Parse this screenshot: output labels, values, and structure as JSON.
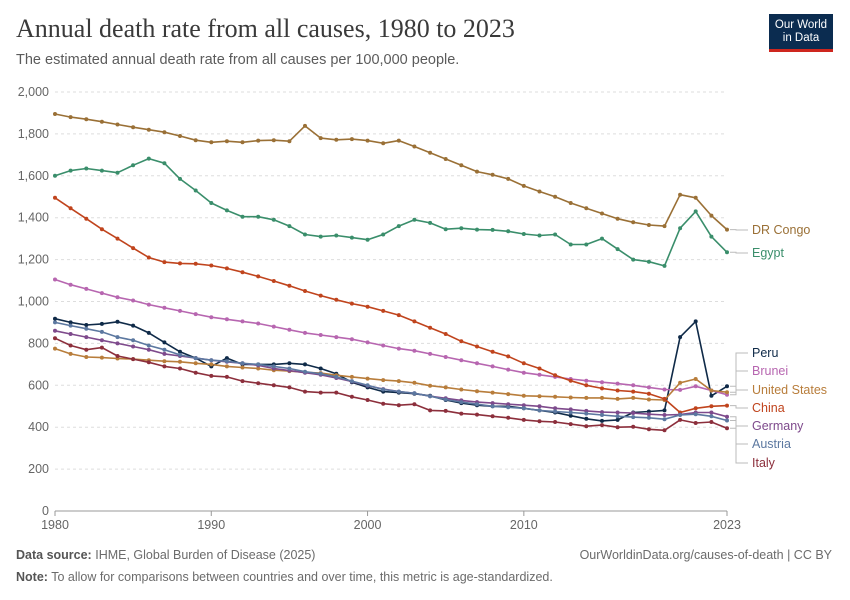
{
  "header": {
    "title": "Annual death rate from all causes, 1980 to 2023",
    "subtitle": "The estimated annual death rate from all causes per 100,000 people.",
    "logo_line1": "Our World",
    "logo_line2": "in Data"
  },
  "footer": {
    "source_label": "Data source:",
    "source_text": "IHME, Global Burden of Disease (2025)",
    "credit": "OurWorldinData.org/causes-of-death | CC BY",
    "note_label": "Note:",
    "note_text": "To allow for comparisons between countries and over time, this metric is age-standardized."
  },
  "chart_data": {
    "type": "line",
    "title": "Annual death rate from all causes, 1980 to 2023",
    "xlim": [
      1980,
      2023
    ],
    "ylim": [
      0,
      2000
    ],
    "x_ticks": [
      1980,
      1990,
      2000,
      2010,
      2023
    ],
    "x_tick_labels": [
      "1980",
      "1990",
      "2000",
      "2010",
      "2023"
    ],
    "y_ticks": [
      0,
      200,
      400,
      600,
      800,
      1000,
      1200,
      1400,
      1600,
      1800,
      2000
    ],
    "y_tick_labels": [
      "0",
      "200",
      "400",
      "600",
      "800",
      "1,000",
      "1,200",
      "1,400",
      "1,600",
      "1,800",
      "2,000"
    ],
    "grid": "horizontal dashed",
    "legend": "right, inline labels",
    "x": [
      1980,
      1981,
      1982,
      1983,
      1984,
      1985,
      1986,
      1987,
      1988,
      1989,
      1990,
      1991,
      1992,
      1993,
      1994,
      1995,
      1996,
      1997,
      1998,
      1999,
      2000,
      2001,
      2002,
      2003,
      2004,
      2005,
      2006,
      2007,
      2008,
      2009,
      2010,
      2011,
      2012,
      2013,
      2014,
      2015,
      2016,
      2017,
      2018,
      2019,
      2020,
      2021,
      2022,
      2023
    ],
    "series": [
      {
        "name": "DR Congo",
        "color": "#9a7036",
        "values": [
          1895,
          1880,
          1870,
          1858,
          1845,
          1832,
          1820,
          1808,
          1790,
          1770,
          1760,
          1765,
          1760,
          1768,
          1770,
          1765,
          1838,
          1780,
          1772,
          1775,
          1768,
          1755,
          1768,
          1740,
          1710,
          1680,
          1650,
          1620,
          1605,
          1585,
          1552,
          1525,
          1500,
          1470,
          1445,
          1420,
          1395,
          1378,
          1365,
          1360,
          1510,
          1495,
          1410,
          1343
        ]
      },
      {
        "name": "Egypt",
        "color": "#3a8e6b",
        "values": [
          1600,
          1625,
          1635,
          1625,
          1615,
          1650,
          1682,
          1660,
          1585,
          1530,
          1470,
          1435,
          1405,
          1405,
          1390,
          1360,
          1320,
          1310,
          1315,
          1305,
          1295,
          1320,
          1360,
          1390,
          1375,
          1345,
          1350,
          1343,
          1342,
          1335,
          1322,
          1315,
          1320,
          1272,
          1272,
          1300,
          1250,
          1200,
          1190,
          1170,
          1350,
          1430,
          1310,
          1235
        ]
      },
      {
        "name": "Peru",
        "color": "#0f2a48",
        "values": [
          918,
          900,
          888,
          893,
          903,
          885,
          850,
          805,
          760,
          730,
          690,
          730,
          700,
          700,
          700,
          705,
          700,
          680,
          655,
          615,
          590,
          570,
          565,
          560,
          550,
          530,
          515,
          505,
          500,
          500,
          490,
          480,
          470,
          455,
          440,
          430,
          435,
          470,
          475,
          480,
          830,
          905,
          550,
          595
        ]
      },
      {
        "name": "Brunei",
        "color": "#b766b0",
        "values": [
          1105,
          1080,
          1060,
          1040,
          1020,
          1005,
          985,
          970,
          955,
          940,
          925,
          915,
          905,
          895,
          880,
          865,
          850,
          840,
          830,
          820,
          805,
          790,
          775,
          765,
          750,
          735,
          720,
          705,
          690,
          675,
          660,
          650,
          640,
          630,
          622,
          615,
          608,
          600,
          590,
          580,
          578,
          595,
          575,
          555
        ]
      },
      {
        "name": "United States",
        "color": "#b87d3b",
        "values": [
          775,
          750,
          735,
          732,
          728,
          725,
          720,
          715,
          712,
          705,
          700,
          690,
          685,
          680,
          672,
          668,
          662,
          658,
          648,
          640,
          632,
          625,
          620,
          612,
          598,
          590,
          580,
          572,
          565,
          558,
          550,
          548,
          545,
          542,
          540,
          540,
          535,
          540,
          532,
          530,
          612,
          630,
          575,
          567
        ]
      },
      {
        "name": "China",
        "color": "#c0441d",
        "values": [
          1495,
          1445,
          1395,
          1345,
          1300,
          1255,
          1210,
          1188,
          1182,
          1180,
          1172,
          1158,
          1140,
          1120,
          1098,
          1075,
          1050,
          1028,
          1008,
          990,
          975,
          955,
          935,
          905,
          875,
          845,
          810,
          785,
          760,
          738,
          705,
          680,
          648,
          622,
          600,
          585,
          575,
          570,
          560,
          535,
          470,
          490,
          500,
          503
        ]
      },
      {
        "name": "Germany",
        "color": "#7e4a8c",
        "values": [
          860,
          845,
          830,
          815,
          800,
          785,
          770,
          750,
          740,
          730,
          720,
          712,
          705,
          695,
          680,
          670,
          660,
          650,
          635,
          618,
          598,
          582,
          570,
          562,
          548,
          538,
          528,
          520,
          515,
          510,
          505,
          500,
          490,
          485,
          478,
          472,
          470,
          468,
          462,
          458,
          460,
          470,
          470,
          450
        ]
      },
      {
        "name": "Austria",
        "color": "#5c78a0",
        "values": [
          900,
          885,
          870,
          855,
          830,
          815,
          790,
          770,
          745,
          730,
          720,
          715,
          705,
          700,
          690,
          680,
          665,
          655,
          640,
          620,
          600,
          580,
          570,
          562,
          548,
          532,
          520,
          510,
          500,
          495,
          490,
          480,
          475,
          470,
          465,
          458,
          452,
          448,
          445,
          438,
          458,
          462,
          452,
          432
        ]
      },
      {
        "name": "Italy",
        "color": "#8c2f3c",
        "values": [
          825,
          790,
          770,
          780,
          740,
          725,
          710,
          690,
          680,
          660,
          645,
          640,
          620,
          610,
          600,
          590,
          570,
          565,
          565,
          545,
          530,
          512,
          505,
          510,
          480,
          478,
          465,
          460,
          452,
          445,
          435,
          428,
          425,
          415,
          405,
          410,
          400,
          402,
          390,
          385,
          435,
          420,
          425,
          395
        ]
      }
    ]
  }
}
